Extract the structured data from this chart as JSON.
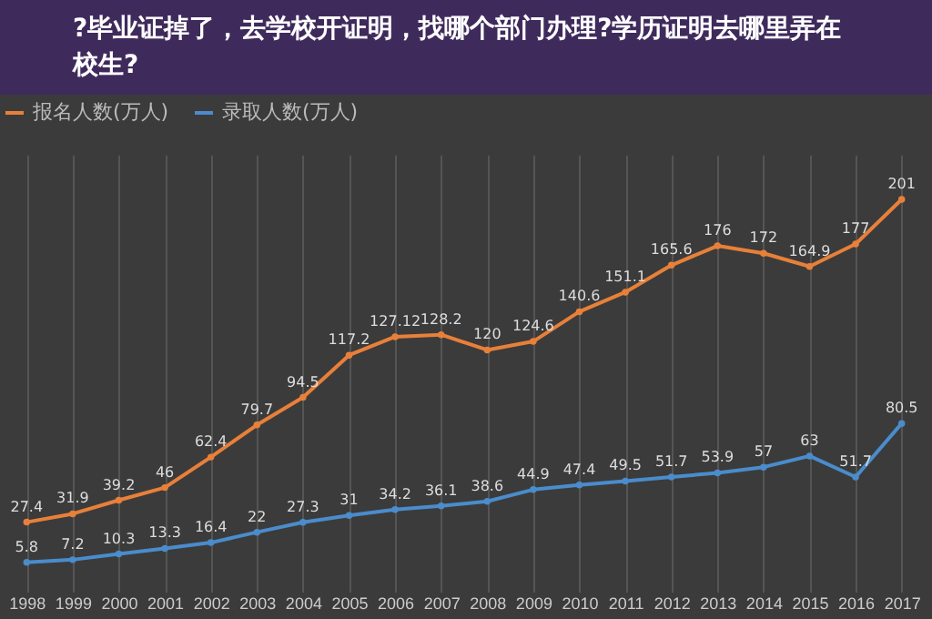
{
  "chart_data": {
    "type": "line",
    "title": "?毕业证掉了，去学校开证明，找哪个部门办理?学历证明去哪里弄在校生?",
    "categories": [
      "1998",
      "1999",
      "2000",
      "2001",
      "2002",
      "2003",
      "2004",
      "2005",
      "2006",
      "2007",
      "2008",
      "2009",
      "2010",
      "2011",
      "2012",
      "2013",
      "2014",
      "2015",
      "2016",
      "2017"
    ],
    "series": [
      {
        "name": "报名人数(万人)",
        "color": "#e8803a",
        "values": [
          27.4,
          31.9,
          39.2,
          46,
          62.4,
          79.7,
          94.5,
          117.2,
          127.12,
          128.2,
          120,
          124.6,
          140.6,
          151.1,
          165.6,
          176,
          172,
          164.9,
          177,
          201
        ]
      },
      {
        "name": "录取人数(万人)",
        "color": "#4a8ccc",
        "values": [
          5.8,
          7.2,
          10.3,
          13.3,
          16.4,
          22,
          27.3,
          31,
          34.2,
          36.1,
          38.6,
          44.9,
          47.4,
          49.5,
          51.7,
          53.9,
          57,
          63,
          51.7,
          80.5
        ]
      }
    ],
    "ylim": [
      -10,
      225
    ],
    "tick_labels": "x",
    "data_labels": true,
    "grid": "x",
    "legend": "top",
    "marker": "circle"
  }
}
